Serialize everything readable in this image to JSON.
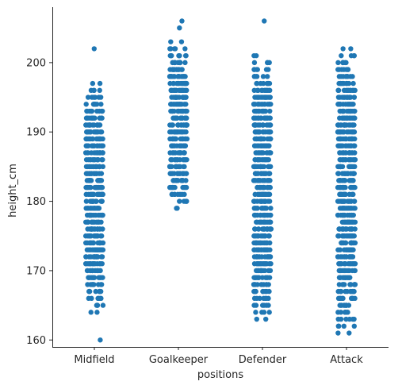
{
  "chart_data": {
    "type": "scatter",
    "subtype": "strip",
    "title": "",
    "xlabel": "positions",
    "ylabel": "height_cm",
    "categories": [
      "Midfield",
      "Goalkeeper",
      "Defender",
      "Attack"
    ],
    "ylim": [
      159,
      208
    ],
    "yticks": [
      160,
      170,
      180,
      190,
      200
    ],
    "grid": false,
    "legend": "none",
    "marker_color": "#1f77b4",
    "series": [
      {
        "category": "Midfield",
        "dense_range": [
          164,
          197
        ],
        "outliers": [
          160,
          202
        ]
      },
      {
        "category": "Goalkeeper",
        "dense_range": [
          179,
          203
        ],
        "outliers": [
          205,
          206
        ]
      },
      {
        "category": "Defender",
        "dense_range": [
          163,
          201
        ],
        "outliers": [
          206
        ]
      },
      {
        "category": "Attack",
        "dense_range": [
          161,
          202
        ],
        "outliers": []
      }
    ]
  }
}
